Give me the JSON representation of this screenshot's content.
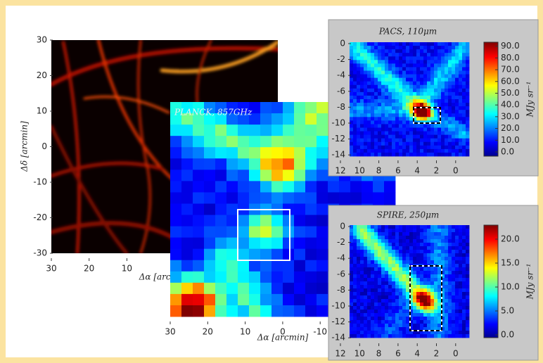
{
  "panels": [
    {
      "xlabel": "Δα [arcmin]",
      "ylabel": "Δδ [arcmin]",
      "xticks": [
        30,
        20,
        10
      ],
      "yticks": [
        30,
        20,
        10,
        0,
        -10,
        -20,
        -30
      ]
    },
    {
      "title": "PLANCK, 857GHz",
      "xlabel": "Δα [arcmin]",
      "xticks": [
        30,
        20,
        10,
        0,
        -10
      ]
    },
    {
      "title": "PACS, 110μm",
      "xticks": [
        12,
        10,
        8,
        6,
        4,
        2,
        0
      ],
      "yticks": [
        0,
        -2,
        -4,
        -6,
        -8,
        -10,
        -12,
        -14
      ],
      "colorbar": {
        "label": "MJy sr⁻¹",
        "ticks": [
          "0.0",
          "10.0",
          "20.0",
          "30.0",
          "40.0",
          "50.0",
          "60.0",
          "70.0",
          "80.0",
          "90.0"
        ]
      }
    },
    {
      "title": "SPIRE, 250μm",
      "xticks": [
        12,
        10,
        8,
        6,
        4,
        2,
        0
      ],
      "yticks": [
        0,
        -2,
        -4,
        -6,
        -8,
        -10,
        -12,
        -14
      ],
      "colorbar": {
        "label": "MJy sr⁻¹",
        "ticks": [
          "0.0",
          "5.0",
          "10.0",
          "15.0",
          "20.0"
        ]
      }
    }
  ]
}
